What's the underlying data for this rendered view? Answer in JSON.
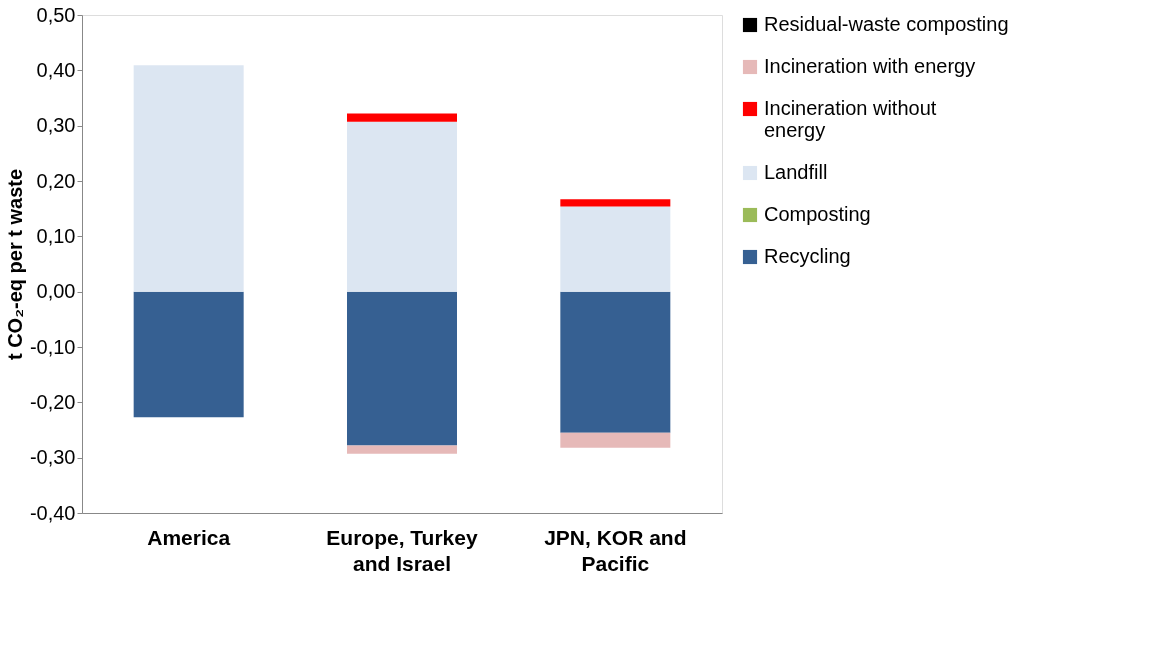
{
  "chart_data": {
    "type": "bar",
    "stacked": true,
    "ylabel": "t CO₂-eq per t waste",
    "categories": [
      "America",
      "Europe, Turkey and Israel",
      "JPN, KOR and Pacific"
    ],
    "series": [
      {
        "name": "Recycling",
        "color": "#366092",
        "values": [
          -0.227,
          -0.278,
          -0.255
        ]
      },
      {
        "name": "Composting",
        "color": "#9bbb59",
        "values": [
          0,
          0,
          0
        ]
      },
      {
        "name": "Landfill",
        "color": "#dce6f2",
        "values": [
          0.409,
          0.307,
          0.154
        ]
      },
      {
        "name": "Incineration without energy",
        "color": "#ff0000",
        "values": [
          0,
          0.015,
          0.013
        ]
      },
      {
        "name": "Incineration with energy",
        "color": "#e6b9b8",
        "values": [
          0,
          -0.015,
          -0.027
        ]
      },
      {
        "name": "Residual-waste composting",
        "color": "#000000",
        "values": [
          0,
          0,
          0
        ]
      }
    ],
    "ylim": [
      -0.4,
      0.5
    ],
    "yticks": [
      {
        "value": -0.4,
        "label": "-0,40"
      },
      {
        "value": -0.3,
        "label": "-0,30"
      },
      {
        "value": -0.2,
        "label": "-0,20"
      },
      {
        "value": -0.1,
        "label": "-0,10"
      },
      {
        "value": 0,
        "label": "0,00"
      },
      {
        "value": 0.1,
        "label": "0,10"
      },
      {
        "value": 0.2,
        "label": "0,20"
      },
      {
        "value": 0.3,
        "label": "0,30"
      },
      {
        "value": 0.4,
        "label": "0,40"
      },
      {
        "value": 0.5,
        "label": "0,50"
      }
    ],
    "grid": false,
    "legend": "right"
  }
}
